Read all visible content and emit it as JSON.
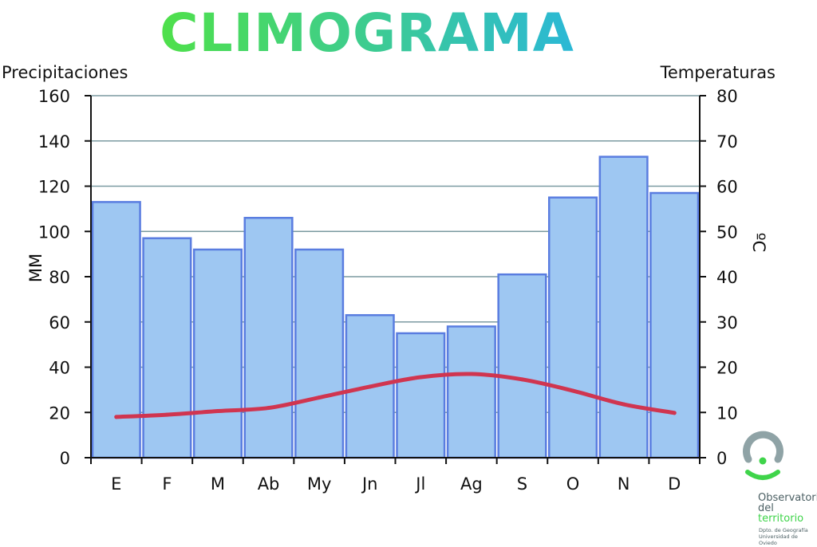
{
  "chart_data": {
    "type": "bar",
    "title": "CLIMOGRAMA",
    "left_axis_heading": "Precipitaciones",
    "right_axis_heading": "Temperaturas",
    "ylabel": "MM",
    "y2label": "ºC",
    "ylim": [
      0,
      160
    ],
    "y2lim": [
      0,
      80
    ],
    "yticks": [
      "0",
      "20",
      "40",
      "60",
      "80",
      "100",
      "120",
      "140",
      "160"
    ],
    "y2ticks": [
      "0",
      "10",
      "20",
      "30",
      "40",
      "50",
      "60",
      "70",
      "80"
    ],
    "grid": true,
    "categories": [
      "E",
      "F",
      "M",
      "Ab",
      "My",
      "Jn",
      "Jl",
      "Ag",
      "S",
      "O",
      "N",
      "D"
    ],
    "series": [
      {
        "type": "bar",
        "axis": "left",
        "values": [
          113,
          97,
          92,
          106,
          92,
          63,
          55,
          58,
          81,
          115,
          133,
          117
        ]
      },
      {
        "type": "line",
        "axis": "right",
        "values": [
          9,
          9.5,
          10.3,
          11,
          13.3,
          15.7,
          17.8,
          18.5,
          17.3,
          14.8,
          11.8,
          9.9
        ]
      }
    ],
    "colors": {
      "bar_fill": "#9ec7f2",
      "bar_stroke": "#5a7de0",
      "line": "#d03550",
      "grid": "#7b9aa1",
      "title_start": "#4fe04a",
      "title_end": "#2bb8d6"
    }
  },
  "logo": {
    "line1": "Observatorio",
    "line2": "del",
    "line3": "territorio",
    "sub1": "Dpto. de Geografía",
    "sub2": "Universidad de",
    "sub3": "Oviedo",
    "colors": {
      "ring": "#8fa3a6",
      "accent": "#3fd44a",
      "text": "#4b5f63"
    }
  }
}
